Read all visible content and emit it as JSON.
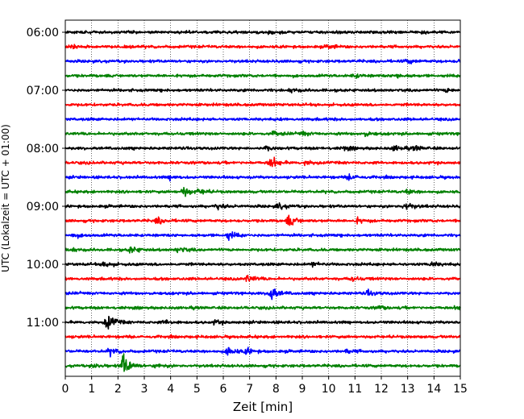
{
  "chart_data": {
    "type": "line",
    "subtype": "helicorder",
    "xlabel": "Zeit  [min]",
    "ylabel": "UTC (Lokalzeit = UTC + 01:00)",
    "xlim": [
      0,
      15
    ],
    "x_ticks": [
      "0",
      "1",
      "2",
      "3",
      "4",
      "5",
      "6",
      "7",
      "8",
      "9",
      "10",
      "11",
      "12",
      "13",
      "14",
      "15"
    ],
    "y_ticks": [
      {
        "label": "06:00",
        "line": 0
      },
      {
        "label": "07:00",
        "line": 4
      },
      {
        "label": "08:00",
        "line": 8
      },
      {
        "label": "09:00",
        "line": 12
      },
      {
        "label": "10:00",
        "line": 16
      },
      {
        "label": "11:00",
        "line": 20
      }
    ],
    "grid": "vertical dotted lines at each minute",
    "line_minutes": 15,
    "colors_cycle": [
      "#000000",
      "#ff0000",
      "#0000ff",
      "#008000"
    ],
    "series": [
      {
        "start": "06:00",
        "events": [
          {
            "t": 7.8,
            "a": 1.5
          },
          {
            "t": 13.6,
            "a": 1.2
          }
        ]
      },
      {
        "start": "06:15",
        "events": [
          {
            "t": 0.2,
            "a": 1.5
          },
          {
            "t": 10.0,
            "a": 1.3
          }
        ]
      },
      {
        "start": "06:30",
        "events": [
          {
            "t": 13.0,
            "a": 1.5
          },
          {
            "t": 15.0,
            "a": 2.0
          }
        ]
      },
      {
        "start": "06:45",
        "events": [
          {
            "t": 11.0,
            "a": 1.3
          },
          {
            "t": 12.6,
            "a": 1.8
          }
        ]
      },
      {
        "start": "07:00",
        "events": [
          {
            "t": 8.6,
            "a": 1.4
          },
          {
            "t": 14.5,
            "a": 1.3
          }
        ]
      },
      {
        "start": "07:15",
        "events": []
      },
      {
        "start": "07:30",
        "events": []
      },
      {
        "start": "07:45",
        "events": [
          {
            "t": 7.9,
            "a": 1.5
          },
          {
            "t": 9.0,
            "a": 1.5
          },
          {
            "t": 11.4,
            "a": 1.8
          }
        ]
      },
      {
        "start": "08:00",
        "events": [
          {
            "t": 7.6,
            "a": 1.6
          },
          {
            "t": 10.6,
            "a": 1.5
          },
          {
            "t": 12.5,
            "a": 2.0
          },
          {
            "t": 13.3,
            "a": 1.6
          }
        ]
      },
      {
        "start": "08:15",
        "events": [
          {
            "t": 7.8,
            "a": 4.5
          },
          {
            "t": 9.1,
            "a": 1.8
          }
        ]
      },
      {
        "start": "08:30",
        "events": [
          {
            "t": 4.0,
            "a": 1.5
          },
          {
            "t": 10.8,
            "a": 2.3
          }
        ]
      },
      {
        "start": "08:45",
        "events": [
          {
            "t": 4.5,
            "a": 4.0
          },
          {
            "t": 5.1,
            "a": 2.0
          },
          {
            "t": 13.0,
            "a": 1.6
          }
        ]
      },
      {
        "start": "09:00",
        "events": [
          {
            "t": 5.8,
            "a": 2.0
          },
          {
            "t": 8.1,
            "a": 2.5
          },
          {
            "t": 12.9,
            "a": 3.5
          }
        ]
      },
      {
        "start": "09:15",
        "events": [
          {
            "t": 3.5,
            "a": 2.5
          },
          {
            "t": 8.5,
            "a": 4.0
          },
          {
            "t": 11.1,
            "a": 1.6
          }
        ]
      },
      {
        "start": "09:30",
        "events": [
          {
            "t": 6.2,
            "a": 3.0
          },
          {
            "t": 0.3,
            "a": 1.4
          }
        ]
      },
      {
        "start": "09:45",
        "events": [
          {
            "t": 2.5,
            "a": 2.8
          },
          {
            "t": 4.3,
            "a": 2.5
          },
          {
            "t": 0.2,
            "a": 1.3
          }
        ]
      },
      {
        "start": "10:00",
        "events": [
          {
            "t": 1.5,
            "a": 2.5
          },
          {
            "t": 13.9,
            "a": 2.0
          },
          {
            "t": 9.4,
            "a": 1.5
          }
        ]
      },
      {
        "start": "10:15",
        "events": [
          {
            "t": 6.9,
            "a": 3.2
          },
          {
            "t": 10.9,
            "a": 1.5
          }
        ]
      },
      {
        "start": "10:30",
        "events": [
          {
            "t": 7.8,
            "a": 6.5
          },
          {
            "t": 11.5,
            "a": 1.8
          }
        ]
      },
      {
        "start": "10:45",
        "events": [
          {
            "t": 14.9,
            "a": 1.5
          },
          {
            "t": 11.9,
            "a": 1.4
          }
        ]
      },
      {
        "start": "11:00",
        "events": [
          {
            "t": 1.6,
            "a": 7.0
          },
          {
            "t": 3.8,
            "a": 1.5
          },
          {
            "t": 5.7,
            "a": 1.3
          }
        ]
      },
      {
        "start": "11:15",
        "events": []
      },
      {
        "start": "11:30",
        "events": [
          {
            "t": 1.7,
            "a": 2.5
          },
          {
            "t": 6.2,
            "a": 3.8
          },
          {
            "t": 6.9,
            "a": 2.0
          },
          {
            "t": 10.7,
            "a": 1.4
          }
        ]
      },
      {
        "start": "11:45",
        "events": [
          {
            "t": 2.2,
            "a": 9.5
          },
          {
            "t": 3.5,
            "a": 1.6
          },
          {
            "t": 1.1,
            "a": 1.5
          }
        ]
      }
    ]
  }
}
